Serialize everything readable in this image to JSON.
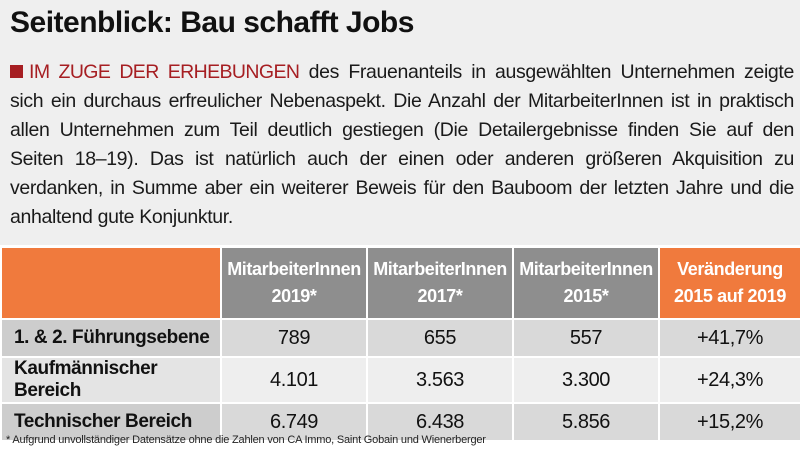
{
  "title": "Seitenblick: Bau schafft Jobs",
  "intro": {
    "lead": "IM ZUGE DER ERHEBUNGEN",
    "text": " des Frauenanteils in ausgewählten Unternehmen zeigte sich ein durchaus erfreulicher Nebenaspekt. Die Anzahl der MitarbeiterInnen  ist in praktisch allen Unternehmen zum Teil deutlich gestiegen (Die Detailergebnisse finden Sie auf den Seiten 18–19). Das ist natürlich auch der einen oder anderen größeren Akquisition zu verdanken, in Summe aber ein weiterer Beweis für den Bauboom der letzten Jahre und die anhaltend gute Konjunktur."
  },
  "colors": {
    "accent_red": "#a61e22",
    "header_orange": "#f07a3d",
    "header_gray": "#8e8e8e"
  },
  "table": {
    "columns": [
      {
        "line1": "MitarbeiterInnen",
        "line2": "2019*"
      },
      {
        "line1": "MitarbeiterInnen",
        "line2": "2017*"
      },
      {
        "line1": "MitarbeiterInnen",
        "line2": "2015*"
      },
      {
        "line1": "Veränderung",
        "line2": "2015 auf 2019"
      }
    ],
    "rows": [
      {
        "label": "1. & 2. Führungsebene",
        "v2019": "789",
        "v2017": "655",
        "v2015": "557",
        "change": "+41,7%"
      },
      {
        "label": "Kaufmännischer Bereich",
        "v2019": "4.101",
        "v2017": "3.563",
        "v2015": "3.300",
        "change": "+24,3%"
      },
      {
        "label": "Technischer Bereich",
        "v2019": "6.749",
        "v2017": "6.438",
        "v2015": "5.856",
        "change": "+15,2%"
      }
    ]
  },
  "footnote": "* Aufgrund unvollständiger Datensätze ohne die Zahlen von CA Immo, Saint Gobain und Wienerberger"
}
